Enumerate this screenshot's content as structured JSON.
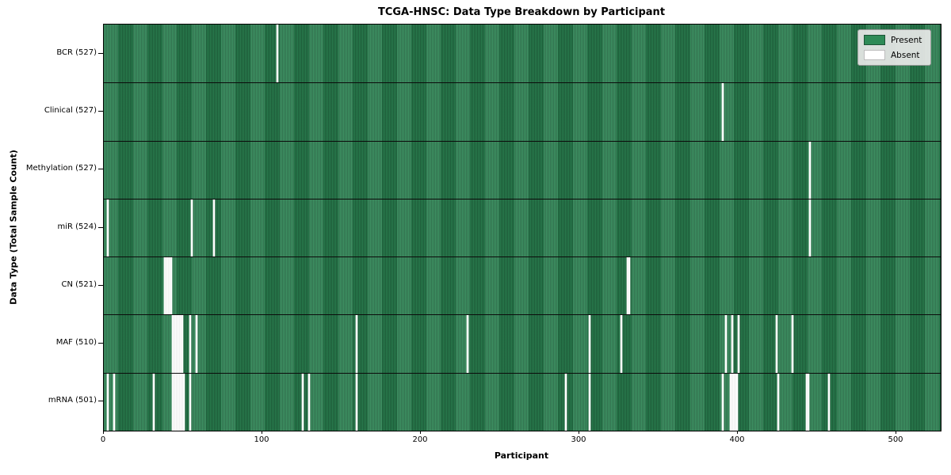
{
  "title": "TCGA-HNSC: Data Type Breakdown by Participant",
  "legend": {
    "present_label": "Present",
    "absent_label": "Absent"
  },
  "axes": {
    "x_label": "Participant",
    "y_label": "Data Type (Total Sample Count)",
    "x_tick_labels": [
      "0",
      "100",
      "200",
      "300",
      "400",
      "500"
    ]
  },
  "colors": {
    "present": "#2e8b57",
    "absent": "#ffffff",
    "bar_edge": "#133d27",
    "legend_bg": "#e8e8e8"
  },
  "chart_data": {
    "type": "heatmap",
    "title": "TCGA-HNSC: Data Type Breakdown by Participant",
    "xlabel": "Participant",
    "ylabel": "Data Type (Total Sample Count)",
    "n_participants": 528,
    "x_ticks": [
      0,
      100,
      200,
      300,
      400,
      500
    ],
    "xlim": [
      0,
      528
    ],
    "legend_entries": [
      "Present",
      "Absent"
    ],
    "legend_position": "upper right",
    "grid": false,
    "rows": [
      {
        "name": "BCR",
        "label": "BCR (527)",
        "present_count": 527,
        "absent_participants": [
          109
        ]
      },
      {
        "name": "Clinical",
        "label": "Clinical (527)",
        "present_count": 527,
        "absent_participants": [
          390
        ]
      },
      {
        "name": "Methylation",
        "label": "Methylation (527)",
        "present_count": 527,
        "absent_participants": [
          445
        ]
      },
      {
        "name": "miR",
        "label": "miR (524)",
        "present_count": 524,
        "absent_participants": [
          2,
          55,
          69,
          445
        ]
      },
      {
        "name": "CN",
        "label": "CN (521)",
        "present_count": 521,
        "absent_participants": [
          38,
          39,
          40,
          41,
          42,
          330,
          331
        ]
      },
      {
        "name": "MAF",
        "label": "MAF (510)",
        "present_count": 510,
        "absent_participants": [
          43,
          44,
          45,
          46,
          47,
          48,
          49,
          54,
          58,
          159,
          229,
          306,
          326,
          392,
          396,
          400,
          424,
          434
        ]
      },
      {
        "name": "mRNA",
        "label": "mRNA (501)",
        "present_count": 501,
        "absent_participants": [
          2,
          6,
          31,
          43,
          44,
          45,
          46,
          47,
          48,
          49,
          50,
          54,
          125,
          129,
          159,
          291,
          306,
          390,
          395,
          396,
          397,
          398,
          399,
          425,
          443,
          444,
          457
        ]
      }
    ]
  }
}
